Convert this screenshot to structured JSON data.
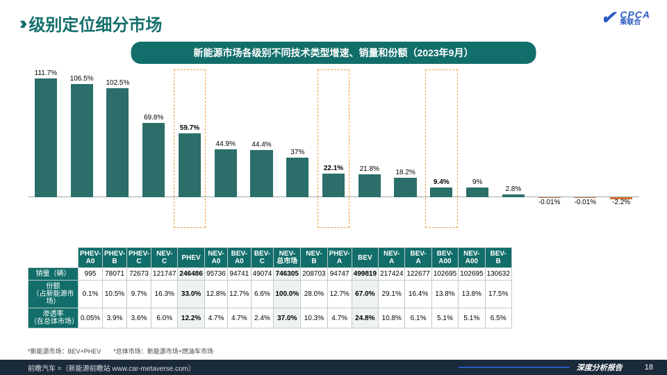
{
  "header": {
    "title": "级别定位细分市场",
    "logo_main": "CPCA",
    "logo_sub": "乘联合"
  },
  "subtitle": "新能源市场各级别不同技术类型增速、销量和份额（2023年9月）",
  "chart": {
    "type": "bar",
    "bar_color": "#2b6e6a",
    "neg_bar_color": "#d4713a",
    "highlight_border": "#f19b3f",
    "axis_color": "#9aa",
    "baseline_pct": 0,
    "max_pct": 120,
    "label_fontsize": 10,
    "highlight_indices": [
      4,
      8,
      11
    ],
    "items": [
      {
        "cat": "PHEV-A0",
        "val": 111.7,
        "bold": false
      },
      {
        "cat": "PHEV-B",
        "val": 106.5,
        "bold": false
      },
      {
        "cat": "PHEV-C",
        "val": 102.5,
        "bold": false
      },
      {
        "cat": "NEV-C",
        "val": 69.8,
        "bold": false
      },
      {
        "cat": "PHEV",
        "val": 59.7,
        "bold": true
      },
      {
        "cat": "NEV-A0",
        "val": 44.9,
        "bold": false
      },
      {
        "cat": "BEV-A0",
        "val": 44.4,
        "bold": false
      },
      {
        "cat": "BEV-C",
        "val": 37.0,
        "bold": false
      },
      {
        "cat": "NEV-总市场",
        "val": 22.1,
        "bold": true
      },
      {
        "cat": "NEV-B",
        "val": 21.8,
        "bold": false
      },
      {
        "cat": "PHEV-A",
        "val": 18.2,
        "bold": false
      },
      {
        "cat": "BEV",
        "val": 9.4,
        "bold": true
      },
      {
        "cat": "NEV-A",
        "val": 9.0,
        "bold": false
      },
      {
        "cat": "BEV-A",
        "val": 2.8,
        "bold": false
      },
      {
        "cat": "BEV-A00",
        "val": -0.01,
        "bold": false
      },
      {
        "cat": "NEV-A00",
        "val": -0.01,
        "bold": false
      },
      {
        "cat": "BEV-B",
        "val": -2.2,
        "bold": false
      }
    ]
  },
  "table": {
    "em_cols": [
      4,
      8,
      11
    ],
    "row_headers": [
      "销量（辆）",
      "份额\n（占新能源市场）",
      "渗透率\n（在总体市场）"
    ],
    "col_headers": [
      "PHEV-A0",
      "PHEV-B",
      "PHEV-C",
      "NEV-C",
      "PHEV",
      "NEV-A0",
      "BEV-A0",
      "BEV-C",
      "NEV-总市场",
      "NEV-B",
      "PHEV-A",
      "BEV",
      "NEV-A",
      "BEV-A",
      "BEV-A00",
      "NEV-A00",
      "BEV-B"
    ],
    "rows": [
      [
        "995",
        "78071",
        "72673",
        "121747",
        "246486",
        "95736",
        "94741",
        "49074",
        "746305",
        "208703",
        "94747",
        "499819",
        "217424",
        "122677",
        "102695",
        "102695",
        "130632"
      ],
      [
        "0.1%",
        "10.5%",
        "9.7%",
        "16.3%",
        "33.0%",
        "12.8%",
        "12.7%",
        "6.6%",
        "100.0%",
        "28.0%",
        "12.7%",
        "67.0%",
        "29.1%",
        "16.4%",
        "13.8%",
        "13.8%",
        "17.5%"
      ],
      [
        "0.05%",
        "3.9%",
        "3.6%",
        "6.0%",
        "12.2%",
        "4.7%",
        "4.7%",
        "2.4%",
        "37.0%",
        "10.3%",
        "4.7%",
        "24.8%",
        "10.8%",
        "6.1%",
        "5.1%",
        "5.1%",
        "6.5%"
      ]
    ]
  },
  "footnote": "*新能源市场：BEV+PHEV　　*总体市场：新能源市场+燃油车市场",
  "footer": {
    "left": "前瞻汽车 =（新能源前瞻站 www.car-metaverse.com）",
    "right_label": "深度分析报告",
    "page": "18"
  }
}
